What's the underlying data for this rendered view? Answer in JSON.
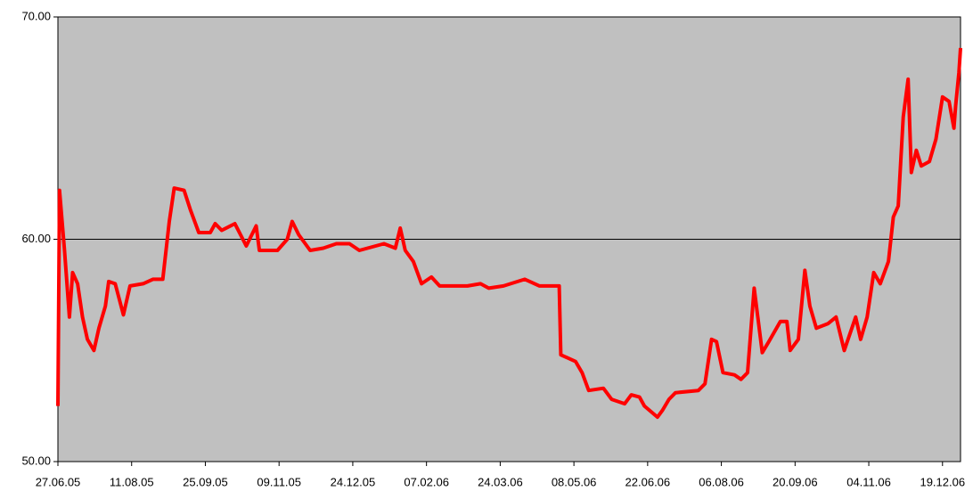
{
  "chart_data": {
    "type": "line",
    "x": [
      "27.06.05",
      "28.06.05",
      "01.07.05",
      "04.07.05",
      "06.07.05",
      "09.07.05",
      "12.07.05",
      "15.07.05",
      "19.07.05",
      "22.07.05",
      "26.07.05",
      "28.07.05",
      "01.08.05",
      "06.08.05",
      "10.08.05",
      "18.08.05",
      "24.08.05",
      "30.08.05",
      "03.09.05",
      "06.09.05",
      "12.09.05",
      "16.09.05",
      "21.09.05",
      "28.09.05",
      "01.10.05",
      "05.10.05",
      "13.10.05",
      "20.10.05",
      "26.10.05",
      "28.10.05",
      "08.11.05",
      "14.11.05",
      "17.11.05",
      "21.11.05",
      "28.11.05",
      "06.12.05",
      "14.12.05",
      "22.12.05",
      "28.12.05",
      "02.01.06",
      "12.01.06",
      "19.01.06",
      "22.01.06",
      "25.01.06",
      "30.01.06",
      "04.02.06",
      "10.02.06",
      "15.02.06",
      "04.03.06",
      "12.03.06",
      "17.03.06",
      "26.03.06",
      "08.04.06",
      "17.04.06",
      "29.04.06",
      "30.04.06",
      "09.05.06",
      "13.05.06",
      "17.05.06",
      "26.05.06",
      "31.05.06",
      "08.06.06",
      "12.06.06",
      "17.06.06",
      "20.06.06",
      "28.06.06",
      "01.07.06",
      "05.07.06",
      "09.07.06",
      "23.07.06",
      "27.07.06",
      "31.07.06",
      "03.08.06",
      "07.08.06",
      "14.08.06",
      "18.08.06",
      "22.08.06",
      "26.08.06",
      "31.08.06",
      "04.09.06",
      "11.09.06",
      "15.09.06",
      "17.09.06",
      "22.09.06",
      "26.09.06",
      "29.09.06",
      "03.10.06",
      "10.10.06",
      "15.10.06",
      "20.10.06",
      "27.10.06",
      "30.10.06",
      "03.11.06",
      "07.11.06",
      "11.11.06",
      "16.11.06",
      "19.11.06",
      "22.11.06",
      "25.11.06",
      "28.11.06",
      "30.11.06",
      "03.12.06",
      "06.12.06",
      "11.12.06",
      "15.12.06",
      "19.12.06",
      "23.12.06",
      "26.12.06",
      "27.12.06",
      "29.12.06",
      "30.12.06"
    ],
    "series": [
      {
        "color": "#ff0000",
        "values": [
          52.5,
          62.2,
          59.5,
          56.5,
          58.5,
          58.0,
          56.5,
          55.5,
          55.0,
          56.0,
          57.0,
          58.1,
          58.0,
          56.6,
          57.9,
          58.0,
          58.2,
          58.2,
          60.8,
          62.3,
          62.2,
          61.3,
          60.3,
          60.3,
          60.7,
          60.4,
          60.7,
          59.7,
          60.6,
          59.5,
          59.5,
          60.0,
          60.8,
          60.2,
          59.5,
          59.6,
          59.8,
          59.8,
          59.5,
          59.6,
          59.8,
          59.6,
          60.5,
          59.5,
          59.0,
          58.0,
          58.3,
          57.9,
          57.9,
          58.0,
          57.8,
          57.9,
          58.2,
          57.9,
          57.9,
          54.8,
          54.5,
          54.0,
          53.2,
          53.3,
          52.8,
          52.6,
          53.0,
          52.9,
          52.5,
          52.0,
          52.3,
          52.8,
          53.1,
          53.2,
          53.5,
          55.5,
          55.4,
          54.0,
          53.9,
          53.7,
          54.0,
          57.8,
          54.9,
          55.4,
          56.3,
          56.3,
          55.0,
          55.5,
          58.6,
          57.0,
          56.0,
          56.2,
          56.5,
          55.0,
          56.5,
          55.5,
          56.5,
          58.5,
          58.0,
          59.0,
          61.0,
          61.5,
          65.5,
          67.2,
          63.0,
          64.0,
          63.3,
          63.5,
          64.5,
          66.4,
          66.2,
          65.0,
          66.0,
          67.5,
          68.6
        ]
      }
    ],
    "xlim": [
      "27.06.05",
      "30.12.06"
    ],
    "xticks": [
      "27.06.05",
      "11.08.05",
      "25.09.05",
      "09.11.05",
      "24.12.05",
      "07.02.06",
      "24.03.06",
      "08.05.06",
      "22.06.06",
      "06.08.06",
      "20.09.06",
      "04.11.06",
      "19.12.06"
    ],
    "ylim": [
      50,
      70
    ],
    "yticks": [
      {
        "value": 50,
        "label": "50.00"
      },
      {
        "value": 60,
        "label": "60.00"
      },
      {
        "value": 70,
        "label": "70.00"
      }
    ],
    "grid": true
  }
}
